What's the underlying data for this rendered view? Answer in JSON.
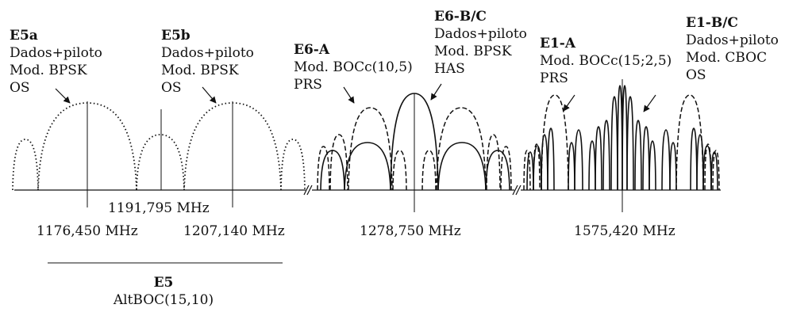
{
  "signals": {
    "e5a": {
      "name": "E5a",
      "line1": "Dados+piloto",
      "line2": "Mod. BPSK",
      "line3": "OS"
    },
    "e5b": {
      "name": "E5b",
      "line1": "Dados+piloto",
      "line2": "Mod. BPSK",
      "line3": "OS"
    },
    "e6a": {
      "name": "E6-A",
      "line1": "Mod. BOCc(10,5)",
      "line2": "PRS"
    },
    "e6bc": {
      "name": "E6-B/C",
      "line1": "Dados+piloto",
      "line2": "Mod. BPSK",
      "line3": "HAS"
    },
    "e1a": {
      "name": "E1-A",
      "line1": "Mod. BOCc(15;2,5)",
      "line2": "PRS"
    },
    "e1bc": {
      "name": "E1-B/C",
      "line1": "Dados+piloto",
      "line2": "Mod. CBOC",
      "line3": "OS"
    }
  },
  "frequencies": {
    "f_e5": "1191,795 MHz",
    "f_e5a": "1176,450 MHz",
    "f_e5b": "1207,140 MHz",
    "f_e6": "1278,750 MHz",
    "f_e1": "1575,420 MHz"
  },
  "e5_group": {
    "name": "E5",
    "modulation": "AltBOC(15,10)"
  }
}
